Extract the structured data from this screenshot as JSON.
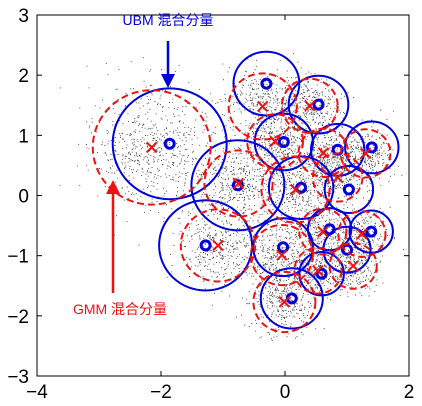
{
  "chart_data": {
    "type": "scatter",
    "xlim": [
      -4,
      2
    ],
    "ylim": [
      -3,
      3
    ],
    "x_ticks": [
      -4,
      -2,
      0,
      2
    ],
    "x_tick_labels": [
      "−4",
      "−2",
      "0",
      "2"
    ],
    "y_ticks": [
      -3,
      -2,
      -1,
      0,
      1,
      2,
      3
    ],
    "y_tick_labels": [
      "−3",
      "−2",
      "−1",
      "0",
      "1",
      "2",
      "3"
    ],
    "grid": false,
    "colors": {
      "axis": "#000000",
      "ubm": "#0000dd",
      "gmm": "#ee1111",
      "points": "#333333"
    },
    "annotations": {
      "ubm_label": "UBM 混合分量",
      "gmm_label": "GMM 混合分量"
    },
    "ubm_components": [
      {
        "mean": [
          -1.86,
          0.86
        ],
        "radius": 0.92
      },
      {
        "mean": [
          -0.76,
          0.17
        ],
        "radius": 0.75
      },
      {
        "mean": [
          -1.28,
          -0.83
        ],
        "radius": 0.75
      },
      {
        "mean": [
          -0.3,
          1.86
        ],
        "radius": 0.53
      },
      {
        "mean": [
          0.54,
          1.51
        ],
        "radius": 0.48
      },
      {
        "mean": [
          -0.02,
          0.89
        ],
        "radius": 0.47
      },
      {
        "mean": [
          0.85,
          0.76
        ],
        "radius": 0.43
      },
      {
        "mean": [
          1.4,
          0.8
        ],
        "radius": 0.43
      },
      {
        "mean": [
          0.26,
          0.13
        ],
        "radius": 0.52
      },
      {
        "mean": [
          1.03,
          0.1
        ],
        "radius": 0.39
      },
      {
        "mean": [
          -0.03,
          -0.86
        ],
        "radius": 0.48
      },
      {
        "mean": [
          0.72,
          -0.56
        ],
        "radius": 0.35
      },
      {
        "mean": [
          1.39,
          -0.6
        ],
        "radius": 0.35
      },
      {
        "mean": [
          1.0,
          -0.9
        ],
        "radius": 0.38
      },
      {
        "mean": [
          0.59,
          -1.3
        ],
        "radius": 0.36
      },
      {
        "mean": [
          0.11,
          -1.71
        ],
        "radius": 0.5
      }
    ],
    "gmm_components": [
      {
        "mean": [
          -2.15,
          0.8
        ],
        "radius": 0.95
      },
      {
        "mean": [
          -0.75,
          0.2
        ],
        "radius": 0.55
      },
      {
        "mean": [
          -1.08,
          -0.83
        ],
        "radius": 0.6
      },
      {
        "mean": [
          -0.36,
          1.48
        ],
        "radius": 0.55
      },
      {
        "mean": [
          0.4,
          1.49
        ],
        "radius": 0.45
      },
      {
        "mean": [
          -0.16,
          0.9
        ],
        "radius": 0.45
      },
      {
        "mean": [
          0.62,
          0.71
        ],
        "radius": 0.4
      },
      {
        "mean": [
          1.3,
          0.7
        ],
        "radius": 0.4
      },
      {
        "mean": [
          0.17,
          0.1
        ],
        "radius": 0.55
      },
      {
        "mean": [
          0.85,
          0.3
        ],
        "radius": 0.4
      },
      {
        "mean": [
          -0.05,
          -0.99
        ],
        "radius": 0.5
      },
      {
        "mean": [
          0.61,
          -0.6
        ],
        "radius": 0.38
      },
      {
        "mean": [
          1.24,
          -0.64
        ],
        "radius": 0.38
      },
      {
        "mean": [
          1.1,
          -1.17
        ],
        "radius": 0.38
      },
      {
        "mean": [
          0.53,
          -1.25
        ],
        "radius": 0.38
      },
      {
        "mean": [
          -0.01,
          -1.77
        ],
        "radius": 0.5
      }
    ]
  }
}
